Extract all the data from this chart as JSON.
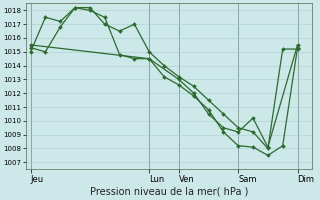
{
  "background_color": "#cce8e8",
  "grid_color": "#aacccc",
  "line_color": "#2d6a2d",
  "marker_color": "#2d6a2d",
  "xlabel": "Pression niveau de la mer( hPa )",
  "ylim": [
    1006.5,
    1018.5
  ],
  "ytick_min": 1007,
  "ytick_max": 1018,
  "xtick_labels": [
    "Jeu",
    "Lun",
    "Ven",
    "Sam",
    "Dim"
  ],
  "xtick_positions": [
    0,
    48,
    60,
    84,
    108
  ],
  "xlim": [
    -2,
    114
  ],
  "vlines": [
    0,
    48,
    60,
    84,
    108
  ],
  "series": [
    {
      "x": [
        0,
        6,
        12,
        18,
        24,
        30,
        36,
        42,
        48,
        54,
        60,
        66,
        72,
        78,
        84,
        90,
        96,
        102,
        108
      ],
      "y": [
        1015.0,
        1017.5,
        1017.2,
        1018.2,
        1018.2,
        1017.0,
        1016.5,
        1017.0,
        1015.0,
        1014.0,
        1013.2,
        1012.5,
        1011.5,
        1010.5,
        1009.5,
        1009.2,
        1008.0,
        1015.2,
        1015.2
      ]
    },
    {
      "x": [
        0,
        6,
        12,
        18,
        24,
        30,
        36,
        42,
        48,
        54,
        60,
        66,
        72,
        78,
        84,
        90,
        96,
        102,
        108
      ],
      "y": [
        1015.3,
        1015.0,
        1016.8,
        1018.2,
        1018.0,
        1017.5,
        1014.8,
        1014.5,
        1014.5,
        1013.2,
        1012.6,
        1011.8,
        1010.8,
        1009.2,
        1008.2,
        1008.1,
        1007.5,
        1008.2,
        1015.3
      ]
    },
    {
      "x": [
        0,
        48,
        60,
        66,
        72,
        78,
        84,
        90,
        96,
        108
      ],
      "y": [
        1015.5,
        1014.5,
        1013.0,
        1012.0,
        1010.5,
        1009.5,
        1009.2,
        1010.2,
        1008.1,
        1015.5
      ]
    }
  ]
}
